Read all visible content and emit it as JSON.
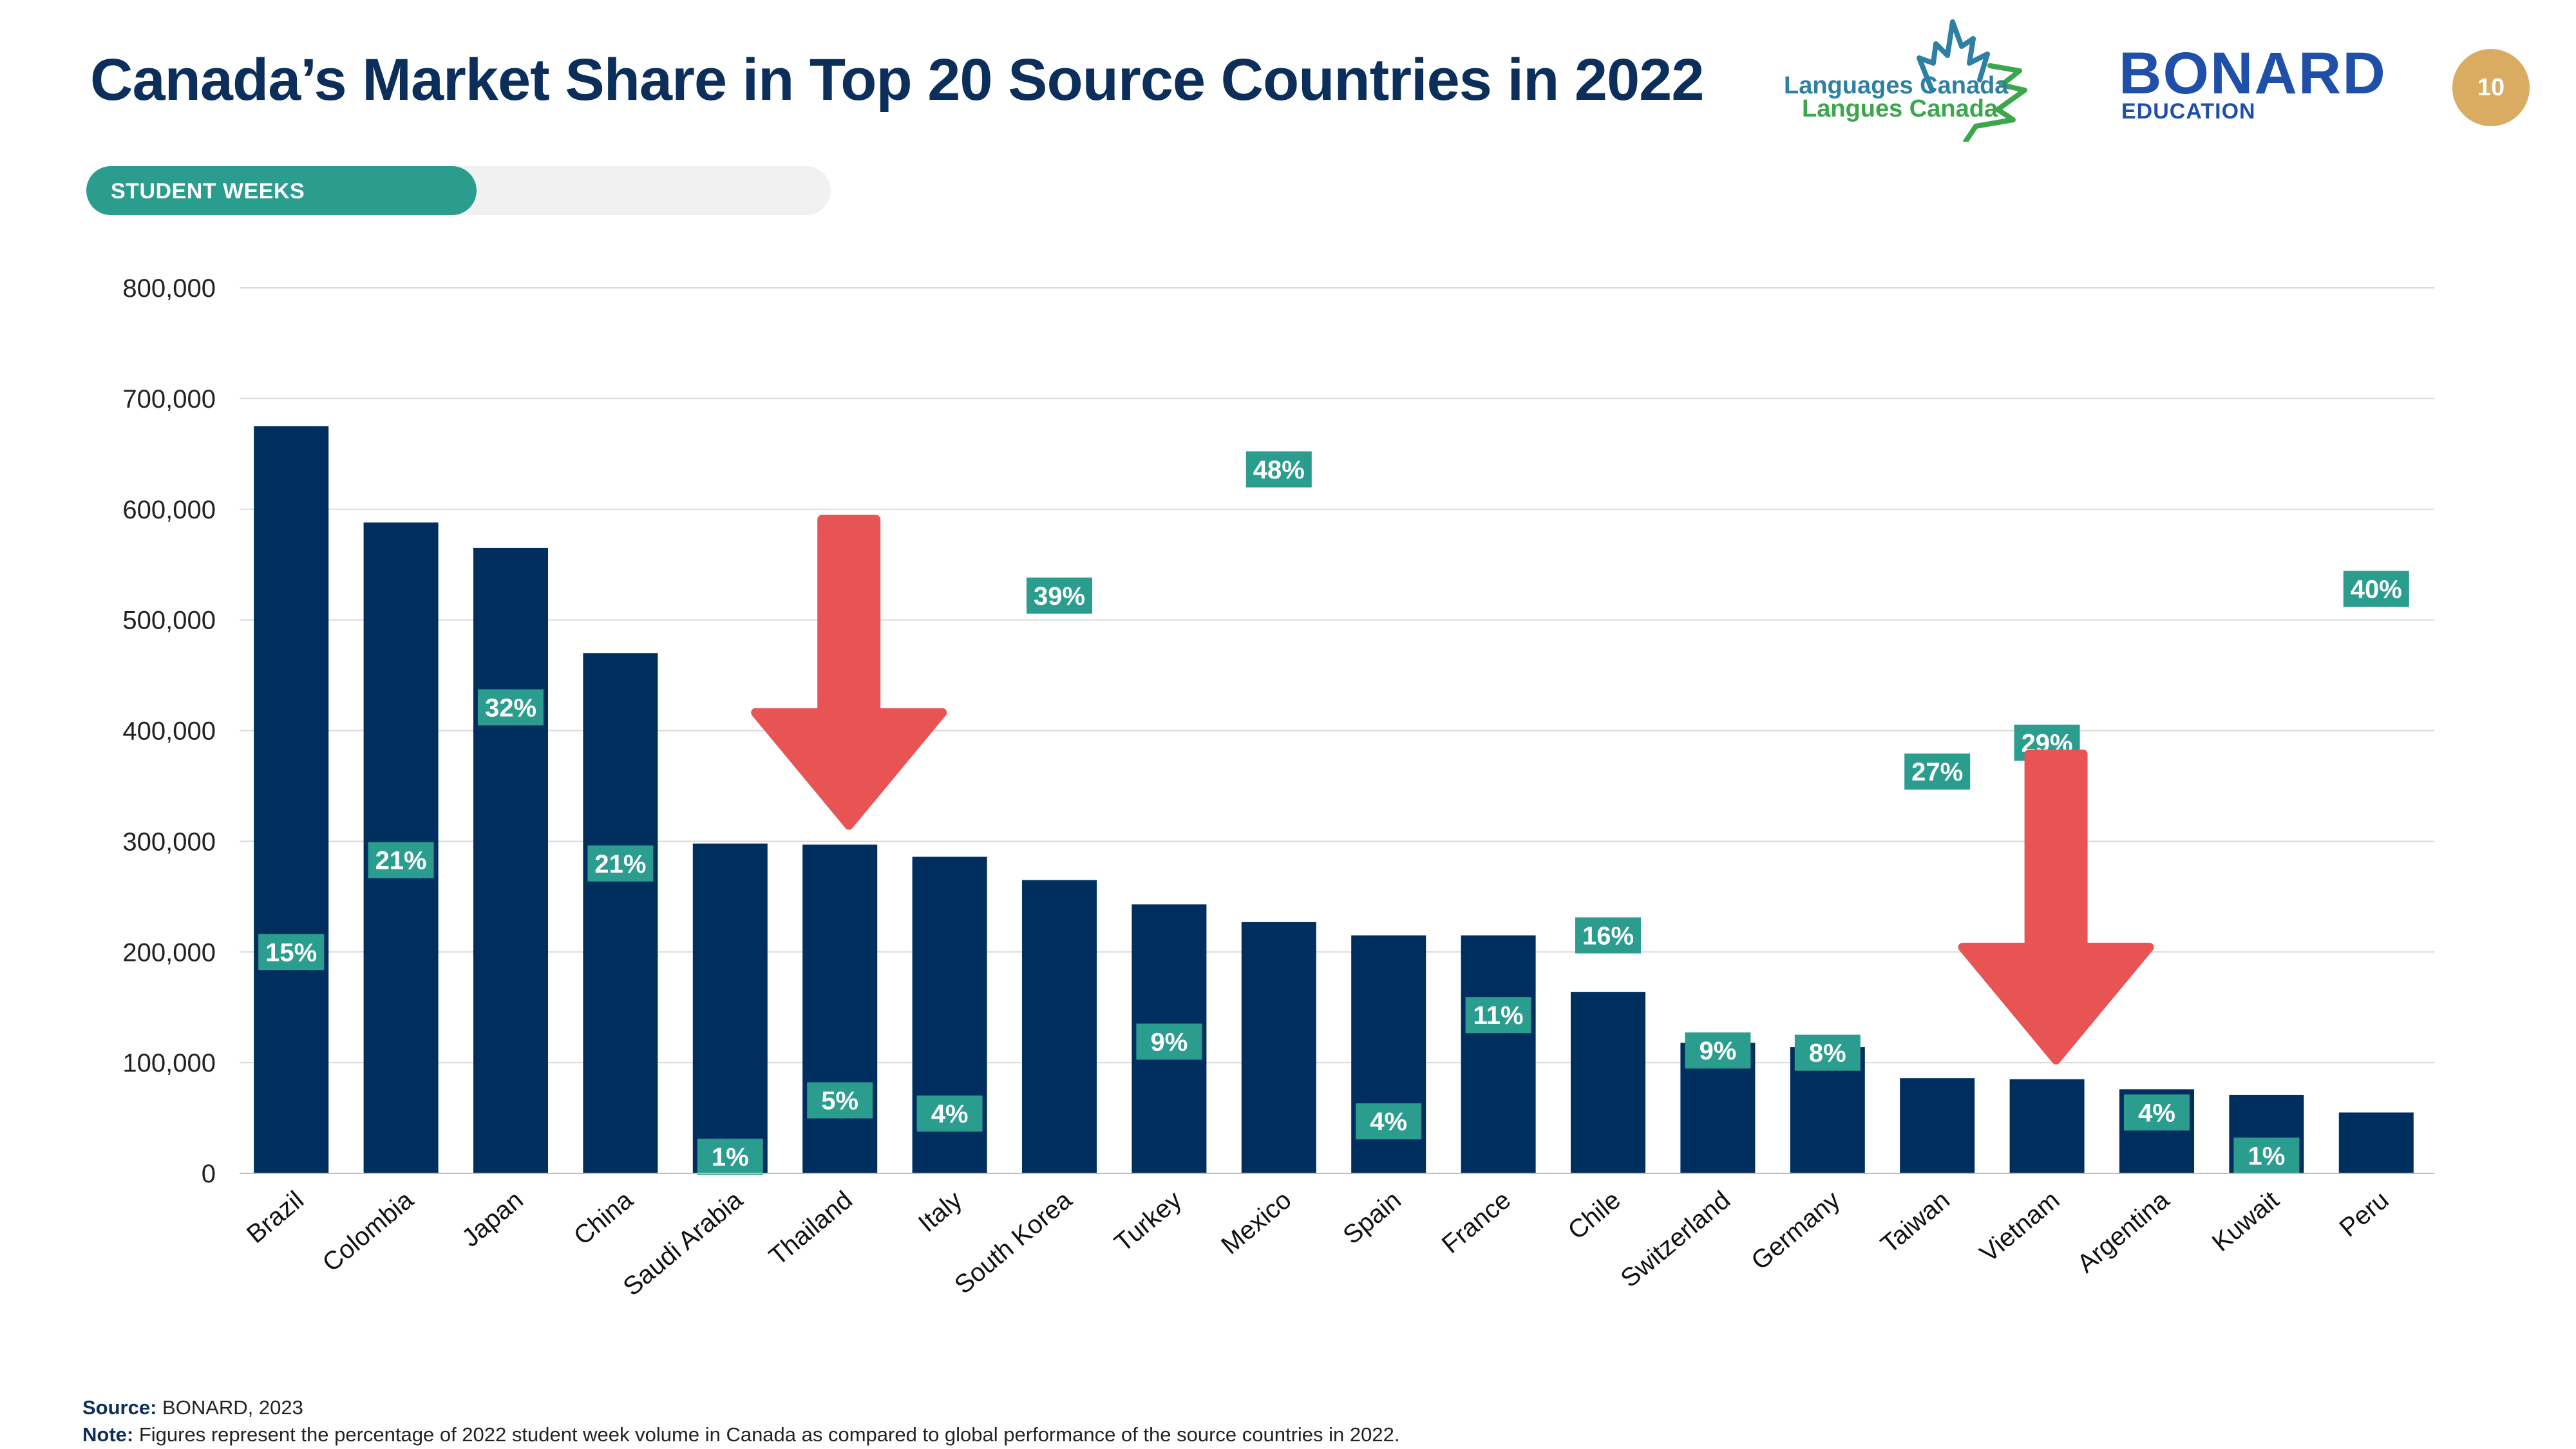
{
  "title": "Canada’s Market Share in Top 20 Source Countries in 2022",
  "tag": "STUDENT WEEKS",
  "logos": {
    "lc_line1": "Languages Canada",
    "lc_line2": "Langues Canada",
    "bonard_main": "BONARD",
    "bonard_sub": "EDUCATION"
  },
  "page_number": "10",
  "colors": {
    "bar": "#002f5f",
    "label_box": "#2a9d8f",
    "arrow": "#e85454",
    "grid": "#d9d9d9"
  },
  "chart_data": {
    "type": "bar",
    "categories": [
      "Brazil",
      "Colombia",
      "Japan",
      "China",
      "Saudi Arabia",
      "Thailand",
      "Italy",
      "South Korea",
      "Turkey",
      "Mexico",
      "Spain",
      "France",
      "Chile",
      "Switzerland",
      "Germany",
      "Taiwan",
      "Vietnam",
      "Argentina",
      "Kuwait",
      "Peru"
    ],
    "values": [
      675000,
      588000,
      565000,
      470000,
      298000,
      297000,
      286000,
      265000,
      243000,
      227000,
      215000,
      215000,
      164000,
      118000,
      114000,
      86000,
      85000,
      76000,
      71000,
      55000
    ],
    "market_share_labels": [
      "15%",
      "21%",
      "32%",
      "21%",
      "1%",
      "5%",
      "4%",
      "39%",
      "9%",
      "48%",
      "4%",
      "11%",
      "16%",
      "9%",
      "8%",
      "27%",
      "29%",
      "4%",
      "1%",
      "40%"
    ],
    "label_positions": [
      200000,
      283000,
      421000,
      280000,
      15000,
      66000,
      54000,
      522000,
      119000,
      636000,
      47000,
      143000,
      215000,
      111000,
      109000,
      363000,
      389000,
      55000,
      16000,
      528000
    ],
    "y_ticks": [
      "0",
      "100,000",
      "200,000",
      "300,000",
      "400,000",
      "500,000",
      "600,000",
      "700,000",
      "800,000"
    ],
    "ylim": [
      0,
      800000
    ],
    "grid": true,
    "arrows_over": [
      "Thailand",
      "Vietnam"
    ]
  },
  "footer": {
    "source_label": "Source:",
    "source_text": " BONARD, 2023",
    "note_label": "Note:",
    "note_text": " Figures represent the percentage of 2022 student week volume in Canada as compared to global performance of the source countries in 2022."
  }
}
